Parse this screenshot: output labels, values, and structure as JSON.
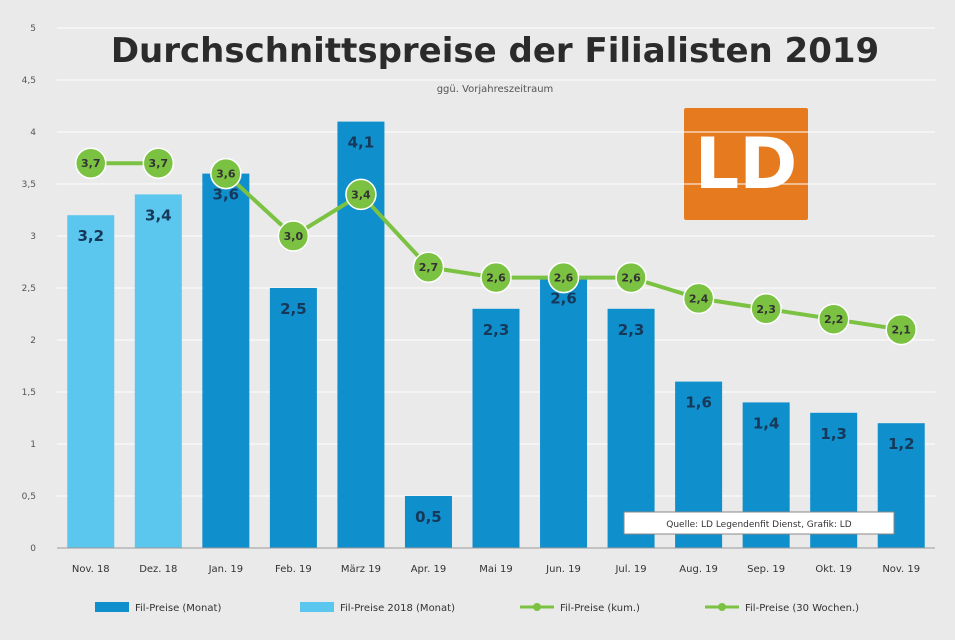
{
  "chart_data": {
    "type": "bar",
    "title": "Durchschnittspreise der Filialisten 2019",
    "subtitle": "ggü. Vorjahreszeitraum",
    "categories": [
      "Nov. 18",
      "Dez. 18",
      "Jan. 19",
      "Feb. 19",
      "März 19",
      "Apr. 19",
      "Mai 19",
      "Jun. 19",
      "Jul. 19",
      "Aug. 19",
      "Sep. 19",
      "Okt. 19",
      "Nov. 19"
    ],
    "yticks": [
      "0",
      "0,5",
      "1",
      "1,5",
      "2",
      "2,5",
      "3",
      "3,5",
      "4",
      "4,5",
      "5"
    ],
    "ylim": [
      0,
      5
    ],
    "bars": [
      {
        "value": 3.2,
        "label": "3,2",
        "series": 1
      },
      {
        "value": 3.4,
        "label": "3,4",
        "series": 1
      },
      {
        "value": 3.6,
        "label": "3,6",
        "series": 0
      },
      {
        "value": 2.5,
        "label": "2,5",
        "series": 0
      },
      {
        "value": 4.1,
        "label": "4,1",
        "series": 0
      },
      {
        "value": 0.5,
        "label": "0,5",
        "series": 0
      },
      {
        "value": 2.3,
        "label": "2,3",
        "series": 0
      },
      {
        "value": 2.6,
        "label": "2,6",
        "series": 0
      },
      {
        "value": 2.3,
        "label": "2,3",
        "series": 0
      },
      {
        "value": 1.6,
        "label": "1,6",
        "series": 0
      },
      {
        "value": 1.4,
        "label": "1,4",
        "series": 0
      },
      {
        "value": 1.3,
        "label": "1,3",
        "series": 0
      },
      {
        "value": 1.2,
        "label": "1,2",
        "series": 0
      }
    ],
    "line_prev": [
      {
        "index": 0,
        "value": 3.7,
        "label": "3,7"
      },
      {
        "index": 1,
        "value": 3.7,
        "label": "3,7"
      }
    ],
    "line_current": [
      {
        "index": 2,
        "value": 3.6,
        "label": "3,6"
      },
      {
        "index": 3,
        "value": 3.0,
        "label": "3,0"
      },
      {
        "index": 4,
        "value": 3.4,
        "label": "3,4"
      },
      {
        "index": 5,
        "value": 2.7,
        "label": "2,7"
      },
      {
        "index": 6,
        "value": 2.6,
        "label": "2,6"
      },
      {
        "index": 7,
        "value": 2.6,
        "label": "2,6"
      },
      {
        "index": 8,
        "value": 2.6,
        "label": "2,6"
      },
      {
        "index": 9,
        "value": 2.4,
        "label": "2,4"
      },
      {
        "index": 10,
        "value": 2.3,
        "label": "2,3"
      },
      {
        "index": 11,
        "value": 2.2,
        "label": "2,2"
      },
      {
        "index": 12,
        "value": 2.1,
        "label": "2,1"
      }
    ],
    "legend": [
      {
        "name": "Fil-Preise (Monat)",
        "kind": "bar",
        "color": "#0f8fcb"
      },
      {
        "name": "Fil-Preise 2018 (Monat)",
        "kind": "bar",
        "color": "#5bc6ee"
      },
      {
        "name": "Fil-Preise (kum.)",
        "kind": "line",
        "color": "#7cc242"
      },
      {
        "name": "Fil-Preise (30 Wochen.)",
        "kind": "line",
        "color": "#7cc242"
      }
    ],
    "grid": true,
    "legend_position": "bottom",
    "source": "Quelle: LD Legendenfit Dienst, Grafik: LD",
    "colors": {
      "bar_current": "#0f8fcb",
      "bar_prev": "#5bc6ee",
      "line": "#7cc242",
      "point": "#7cc242",
      "logo": "#e67a1e"
    }
  },
  "logo_text": "LD"
}
